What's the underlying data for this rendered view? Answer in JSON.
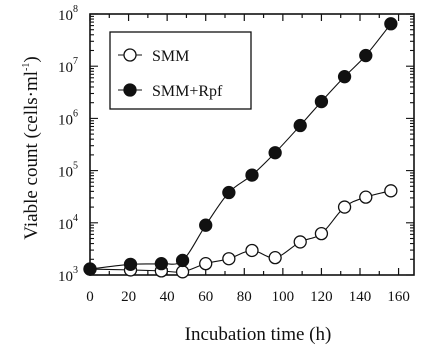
{
  "chart_data": {
    "type": "line",
    "xlabel": "Incubation time (h)",
    "ylabel": "Viable count (cells·ml",
    "ylabel_sup": "-1",
    "ylabel_end": ")",
    "xlim": [
      0,
      168
    ],
    "ylim": [
      1000,
      100000000
    ],
    "yscale": "log",
    "x_ticks": [
      0,
      20,
      40,
      60,
      80,
      100,
      120,
      140,
      160
    ],
    "y_ticks": [
      {
        "value": 1000,
        "base": "10",
        "exp": "3"
      },
      {
        "value": 10000,
        "base": "10",
        "exp": "4"
      },
      {
        "value": 100000,
        "base": "10",
        "exp": "5"
      },
      {
        "value": 1000000,
        "base": "10",
        "exp": "6"
      },
      {
        "value": 10000000,
        "base": "10",
        "exp": "7"
      },
      {
        "value": 100000000,
        "base": "10",
        "exp": "8"
      }
    ],
    "legend_position": "top-left",
    "series": [
      {
        "name": "SMM",
        "marker": "open-circle",
        "x": [
          0,
          21,
          37,
          48,
          60,
          72,
          84,
          96,
          109,
          120,
          132,
          143,
          156
        ],
        "y": [
          1300,
          1250,
          1200,
          1150,
          1650,
          2050,
          2950,
          2150,
          4300,
          6200,
          20000,
          31000,
          41000
        ]
      },
      {
        "name": "SMM+Rpf",
        "marker": "filled-circle",
        "x": [
          0,
          21,
          37,
          48,
          60,
          72,
          84,
          96,
          109,
          120,
          132,
          143,
          156
        ],
        "y": [
          1300,
          1600,
          1650,
          1900,
          9000,
          38000,
          82000,
          220000,
          730000,
          2100000,
          6300000,
          16000000,
          65000000
        ]
      }
    ]
  }
}
